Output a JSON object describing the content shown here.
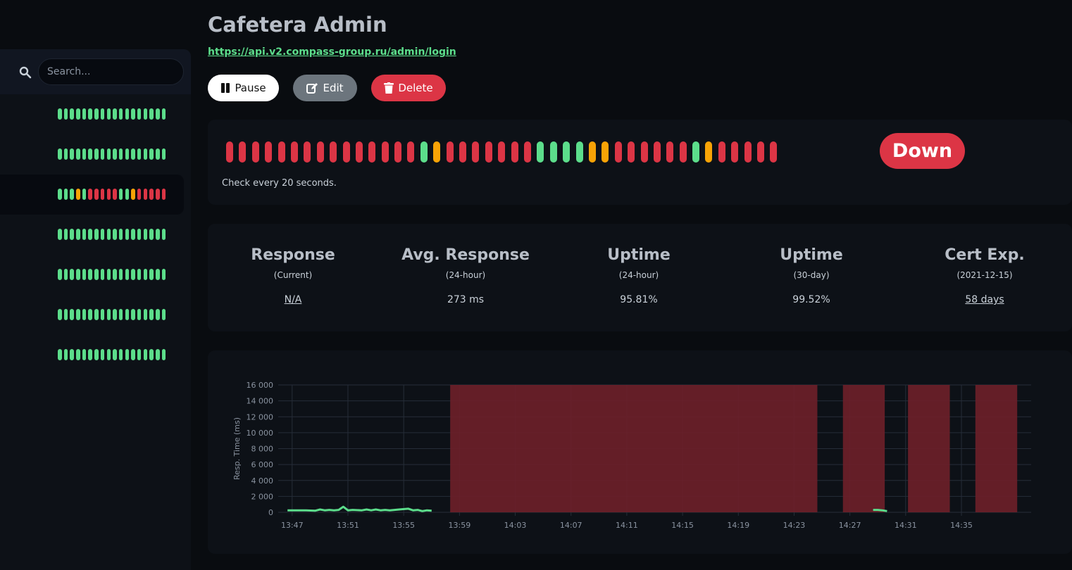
{
  "sidebar": {
    "search_placeholder": "Search...",
    "monitors": [
      {
        "beats": [
          "up",
          "up",
          "up",
          "up",
          "up",
          "up",
          "up",
          "up",
          "up",
          "up",
          "up",
          "up",
          "up",
          "up",
          "up",
          "up",
          "up",
          "up"
        ],
        "active": false
      },
      {
        "beats": [
          "up",
          "up",
          "up",
          "up",
          "up",
          "up",
          "up",
          "up",
          "up",
          "up",
          "up",
          "up",
          "up",
          "up",
          "up",
          "up",
          "up",
          "up"
        ],
        "active": false
      },
      {
        "beats": [
          "up",
          "up",
          "up",
          "pending",
          "up",
          "down",
          "down",
          "down",
          "down",
          "down",
          "up",
          "up",
          "pending",
          "down",
          "down",
          "down",
          "down",
          "down"
        ],
        "active": true
      },
      {
        "beats": [
          "up",
          "up",
          "up",
          "up",
          "up",
          "up",
          "up",
          "up",
          "up",
          "up",
          "up",
          "up",
          "up",
          "up",
          "up",
          "up",
          "up",
          "up"
        ],
        "active": false
      },
      {
        "beats": [
          "up",
          "up",
          "up",
          "up",
          "up",
          "up",
          "up",
          "up",
          "up",
          "up",
          "up",
          "up",
          "up",
          "up",
          "up",
          "up",
          "up",
          "up"
        ],
        "active": false
      },
      {
        "beats": [
          "up",
          "up",
          "up",
          "up",
          "up",
          "up",
          "up",
          "up",
          "up",
          "up",
          "up",
          "up",
          "up",
          "up",
          "up",
          "up",
          "up",
          "up"
        ],
        "active": false
      },
      {
        "beats": [
          "up",
          "up",
          "up",
          "up",
          "up",
          "up",
          "up",
          "up",
          "up",
          "up",
          "up",
          "up",
          "up",
          "up",
          "up",
          "up",
          "up",
          "up"
        ],
        "active": false
      }
    ]
  },
  "monitor": {
    "title": "Cafetera Admin",
    "url": "https://api.v2.compass-group.ru/admin/login"
  },
  "actions": {
    "pause_label": "Pause",
    "edit_label": "Edit",
    "delete_label": "Delete"
  },
  "heartbeat": {
    "beats": [
      "down",
      "down",
      "down",
      "down",
      "down",
      "down",
      "down",
      "down",
      "down",
      "down",
      "down",
      "down",
      "down",
      "down",
      "down",
      "up",
      "pending",
      "down",
      "down",
      "down",
      "down",
      "down",
      "down",
      "down",
      "up",
      "up",
      "up",
      "up",
      "pending",
      "pending",
      "down",
      "down",
      "down",
      "down",
      "down",
      "down",
      "up",
      "pending",
      "down",
      "down",
      "down",
      "down",
      "down"
    ],
    "status": "Down",
    "check_text": "Check every 20 seconds."
  },
  "stats": [
    {
      "title": "Response",
      "sub": "(Current)",
      "value": "N/A",
      "link": true
    },
    {
      "title": "Avg. Response",
      "sub": "(24-hour)",
      "value": "273 ms",
      "link": false
    },
    {
      "title": "Uptime",
      "sub": "(24-hour)",
      "value": "95.81%",
      "link": false
    },
    {
      "title": "Uptime",
      "sub": "(30-day)",
      "value": "99.52%",
      "link": false
    },
    {
      "title": "Cert Exp.",
      "sub": "(2021-12-15)",
      "value": "58 days",
      "link": true
    }
  ],
  "colors": {
    "up": "#5cdd8b",
    "down": "#dc3545",
    "pending": "#f8a306",
    "down_band": "#6b1f29"
  },
  "chart_data": {
    "type": "line",
    "ylabel": "Resp. Time (ms)",
    "ylim": [
      0,
      16000
    ],
    "yticks": [
      0,
      2000,
      4000,
      6000,
      8000,
      10000,
      12000,
      14000,
      16000
    ],
    "ytick_labels": [
      "0",
      "2 000",
      "4 000",
      "6 000",
      "8 000",
      "10 000",
      "12 000",
      "14 000",
      "16 000"
    ],
    "xlim": [
      "13:46",
      "14:40"
    ],
    "xticks": [
      "13:47",
      "13:51",
      "13:55",
      "13:59",
      "14:03",
      "14:07",
      "14:11",
      "14:15",
      "14:19",
      "14:23",
      "14:27",
      "14:31",
      "14:35"
    ],
    "grid": true,
    "series": [
      {
        "segments": [
          [
            [
              "13:46:40",
              250
            ],
            [
              "13:48:00",
              250
            ],
            [
              "13:48:40",
              200
            ],
            [
              "13:49:00",
              350
            ],
            [
              "13:49:20",
              250
            ],
            [
              "13:49:40",
              300
            ],
            [
              "13:50:00",
              250
            ],
            [
              "13:50:20",
              300
            ],
            [
              "13:50:40",
              700
            ],
            [
              "13:51:00",
              250
            ],
            [
              "13:51:20",
              300
            ],
            [
              "13:52:00",
              250
            ],
            [
              "13:52:20",
              350
            ],
            [
              "13:52:40",
              250
            ],
            [
              "13:53:00",
              350
            ],
            [
              "13:53:20",
              250
            ],
            [
              "13:53:40",
              300
            ],
            [
              "13:54:00",
              250
            ],
            [
              "13:54:20",
              300
            ],
            [
              "13:54:40",
              350
            ],
            [
              "13:55:20",
              450
            ],
            [
              "13:55:40",
              250
            ],
            [
              "13:56:00",
              300
            ],
            [
              "13:56:20",
              150
            ],
            [
              "13:56:40",
              250
            ],
            [
              "13:57:00",
              200
            ]
          ],
          [
            [
              "14:28:40",
              300
            ],
            [
              "14:29:00",
              300
            ],
            [
              "14:29:20",
              250
            ],
            [
              "14:29:40",
              150
            ]
          ]
        ]
      }
    ],
    "down_periods": [
      [
        "13:58:20",
        "14:24:40"
      ],
      [
        "14:26:30",
        "14:29:30"
      ],
      [
        "14:31:10",
        "14:34:10"
      ],
      [
        "14:36:00",
        "14:39:00"
      ]
    ]
  }
}
